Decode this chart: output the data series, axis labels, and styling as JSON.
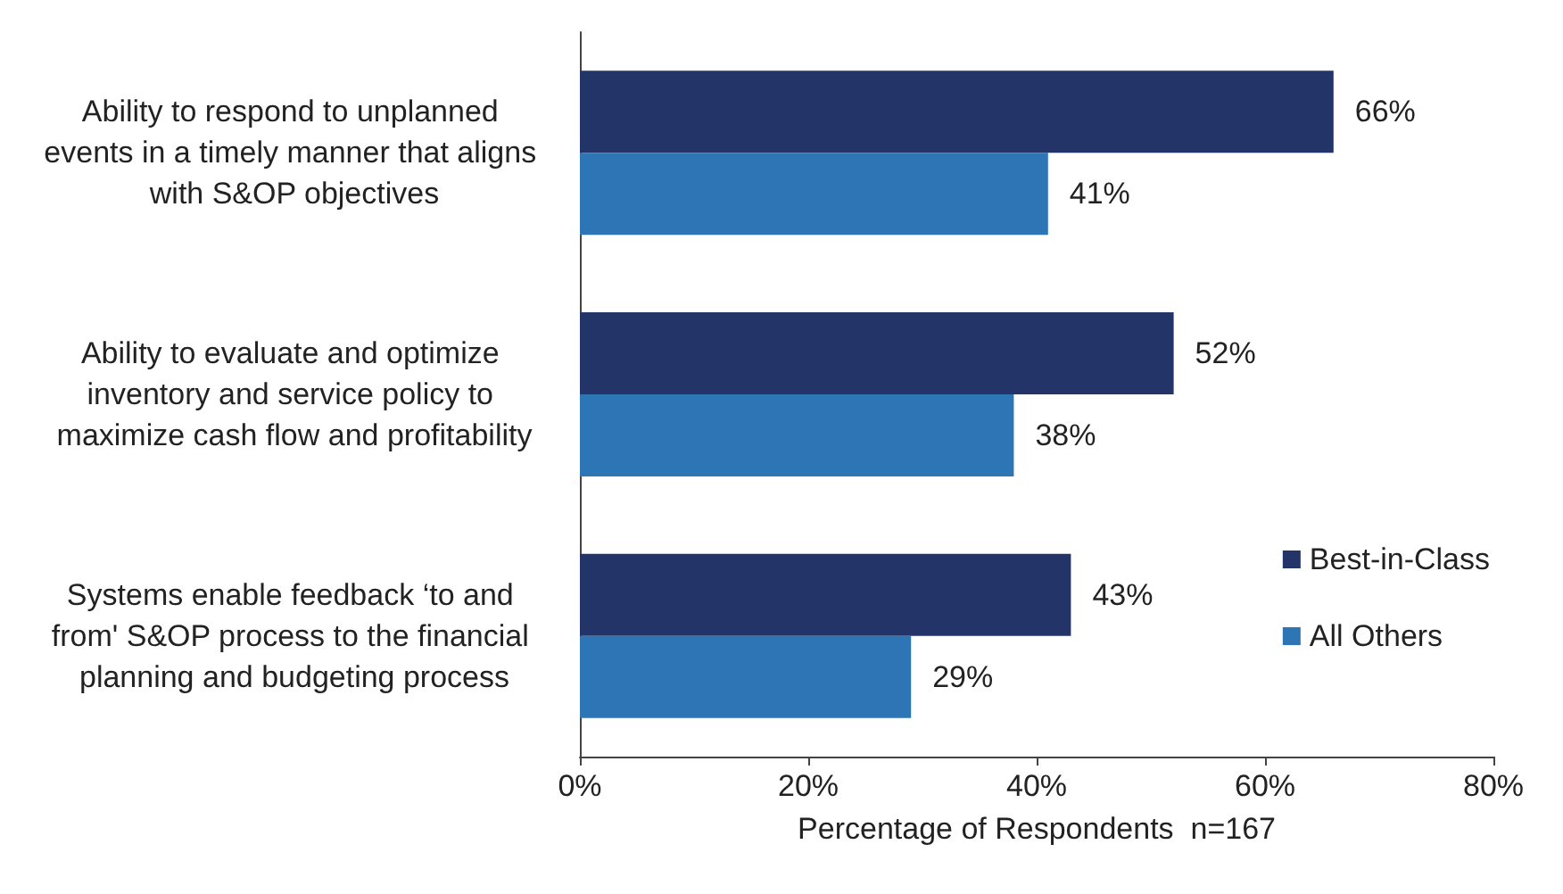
{
  "chart_data": {
    "type": "bar",
    "orientation": "horizontal",
    "xlabel": "Percentage of Respondents  n=167",
    "categories": [
      "Ability to respond to unplanned events in a timely manner that aligns with S&OP objectives",
      "Ability to evaluate and optimize inventory and service policy to maximize cash flow and profitability",
      "Systems enable feedback ‘to and from' S&OP process to the financial planning and budgeting process"
    ],
    "series": [
      {
        "name": "Best-in-Class",
        "color": "#233469",
        "values": [
          66,
          52,
          43
        ],
        "value_labels": [
          "66%",
          "52%",
          "43%"
        ]
      },
      {
        "name": "All Others",
        "color": "#2e75b6",
        "values": [
          41,
          38,
          29
        ],
        "value_labels": [
          "41%",
          "38%",
          "29%"
        ]
      }
    ],
    "xlim": [
      0,
      80
    ],
    "xticks": [
      {
        "value": 0,
        "label": "0%"
      },
      {
        "value": 20,
        "label": "20%"
      },
      {
        "value": 40,
        "label": "40%"
      },
      {
        "value": 60,
        "label": "60%"
      },
      {
        "value": 80,
        "label": "80%"
      }
    ],
    "grid": false,
    "legend": "right"
  }
}
